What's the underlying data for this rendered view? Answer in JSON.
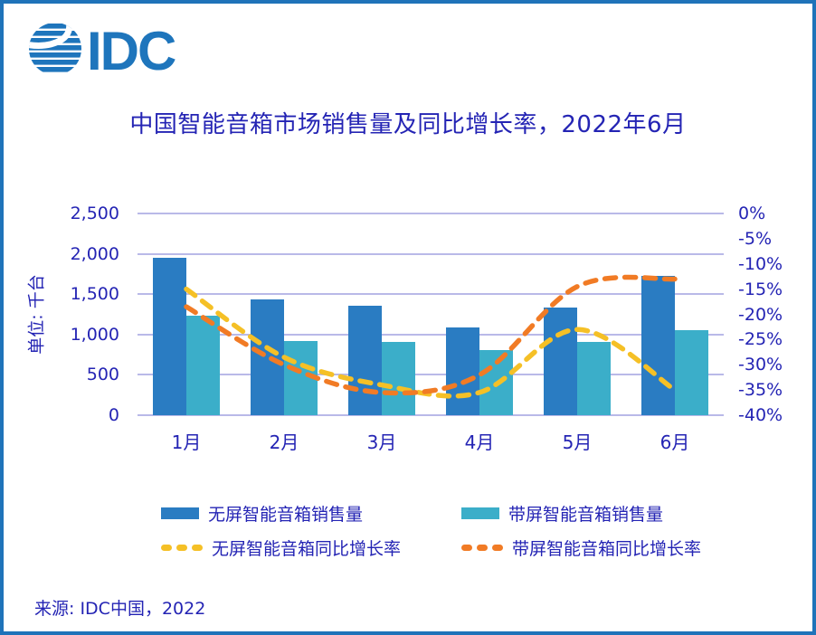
{
  "logo": {
    "text": "IDC",
    "globe_icon": "striped-globe-icon",
    "color": "#1e75bc"
  },
  "title": "中国智能音箱市场销售量及同比增长率，2022年6月",
  "source": "来源: IDC中国，2022",
  "colors": {
    "border": "#1f73b9",
    "text_blue": "#2424b4",
    "gridline": "#b9b9e8",
    "bar_screenless": "#2a7cc2",
    "bar_screened": "#3baec9",
    "line_screenless": "#f5c026",
    "line_screened": "#f17b25"
  },
  "chart_data": {
    "type": "bar+line combo",
    "categories": [
      "1月",
      "2月",
      "3月",
      "4月",
      "5月",
      "6月"
    ],
    "bar_series": [
      {
        "name": "无屏智能音箱销售量",
        "color": "#2a7cc2",
        "axis": "left",
        "values": [
          1950,
          1440,
          1360,
          1090,
          1330,
          1730
        ]
      },
      {
        "name": "带屏智能音箱销售量",
        "color": "#3baec9",
        "axis": "left",
        "values": [
          1230,
          925,
          910,
          805,
          910,
          1055
        ]
      }
    ],
    "line_series": [
      {
        "name": "无屏智能音箱同比增长率",
        "color": "#f5c026",
        "style": "dashed",
        "axis": "right",
        "values": [
          -15,
          -28.5,
          -34,
          -35.5,
          -23,
          -35
        ]
      },
      {
        "name": "带屏智能音箱同比增长率",
        "color": "#f17b25",
        "style": "dashed",
        "axis": "right",
        "values": [
          -18.5,
          -30,
          -35.5,
          -32,
          -14.5,
          -13
        ]
      }
    ],
    "left_axis": {
      "label": "单位: 千台",
      "min": 0,
      "max": 2500,
      "ticks": [
        "2,500",
        "2,000",
        "1,500",
        "1,000",
        "500",
        "0"
      ]
    },
    "right_axis": {
      "min": -40,
      "max": 0,
      "ticks": [
        "0%",
        "-5%",
        "-10%",
        "-15%",
        "-20%",
        "-25%",
        "-30%",
        "-35%",
        "-40%"
      ]
    },
    "grid": true,
    "legend_position": "bottom"
  }
}
